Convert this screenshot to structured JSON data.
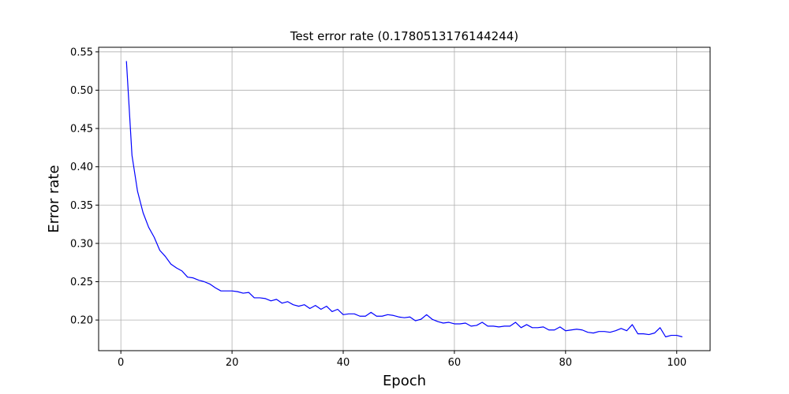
{
  "chart_data": {
    "type": "line",
    "title": "Test error rate (0.1780513176144244)",
    "xlabel": "Epoch",
    "ylabel": "Error rate",
    "xlim": [
      -4,
      106
    ],
    "ylim": [
      0.16,
      0.556
    ],
    "xticks": [
      0,
      20,
      40,
      60,
      80,
      100
    ],
    "xtick_labels": [
      "0",
      "20",
      "40",
      "60",
      "80",
      "100"
    ],
    "yticks": [
      0.2,
      0.25,
      0.3,
      0.35,
      0.4,
      0.45,
      0.5,
      0.55
    ],
    "ytick_labels": [
      "0.20",
      "0.25",
      "0.30",
      "0.35",
      "0.40",
      "0.45",
      "0.50",
      "0.55"
    ],
    "grid": true,
    "series": [
      {
        "color": "#0000ff",
        "x": [
          1,
          2,
          3,
          4,
          5,
          6,
          7,
          8,
          9,
          10,
          11,
          12,
          13,
          14,
          15,
          16,
          17,
          18,
          19,
          20,
          21,
          22,
          23,
          24,
          25,
          26,
          27,
          28,
          29,
          30,
          31,
          32,
          33,
          34,
          35,
          36,
          37,
          38,
          39,
          40,
          41,
          42,
          43,
          44,
          45,
          46,
          47,
          48,
          49,
          50,
          51,
          52,
          53,
          54,
          55,
          56,
          57,
          58,
          59,
          60,
          61,
          62,
          63,
          64,
          65,
          66,
          67,
          68,
          69,
          70,
          71,
          72,
          73,
          74,
          75,
          76,
          77,
          78,
          79,
          80,
          81,
          82,
          83,
          84,
          85,
          86,
          87,
          88,
          89,
          90,
          91,
          92,
          93,
          94,
          95,
          96,
          97,
          98,
          99,
          100,
          101
        ],
        "y": [
          0.538,
          0.415,
          0.368,
          0.34,
          0.321,
          0.308,
          0.291,
          0.283,
          0.273,
          0.268,
          0.264,
          0.256,
          0.255,
          0.252,
          0.25,
          0.247,
          0.242,
          0.238,
          0.238,
          0.238,
          0.237,
          0.235,
          0.236,
          0.229,
          0.229,
          0.228,
          0.225,
          0.227,
          0.222,
          0.224,
          0.22,
          0.218,
          0.22,
          0.215,
          0.219,
          0.214,
          0.218,
          0.211,
          0.214,
          0.207,
          0.208,
          0.208,
          0.205,
          0.205,
          0.21,
          0.205,
          0.205,
          0.207,
          0.206,
          0.204,
          0.203,
          0.204,
          0.199,
          0.201,
          0.207,
          0.201,
          0.198,
          0.196,
          0.197,
          0.195,
          0.195,
          0.196,
          0.192,
          0.193,
          0.197,
          0.192,
          0.192,
          0.191,
          0.192,
          0.192,
          0.197,
          0.19,
          0.194,
          0.19,
          0.19,
          0.191,
          0.187,
          0.187,
          0.191,
          0.186,
          0.187,
          0.188,
          0.187,
          0.184,
          0.183,
          0.185,
          0.185,
          0.184,
          0.186,
          0.189,
          0.186,
          0.194,
          0.182,
          0.182,
          0.181,
          0.183,
          0.19,
          0.178,
          0.18,
          0.18,
          0.178
        ]
      }
    ]
  }
}
